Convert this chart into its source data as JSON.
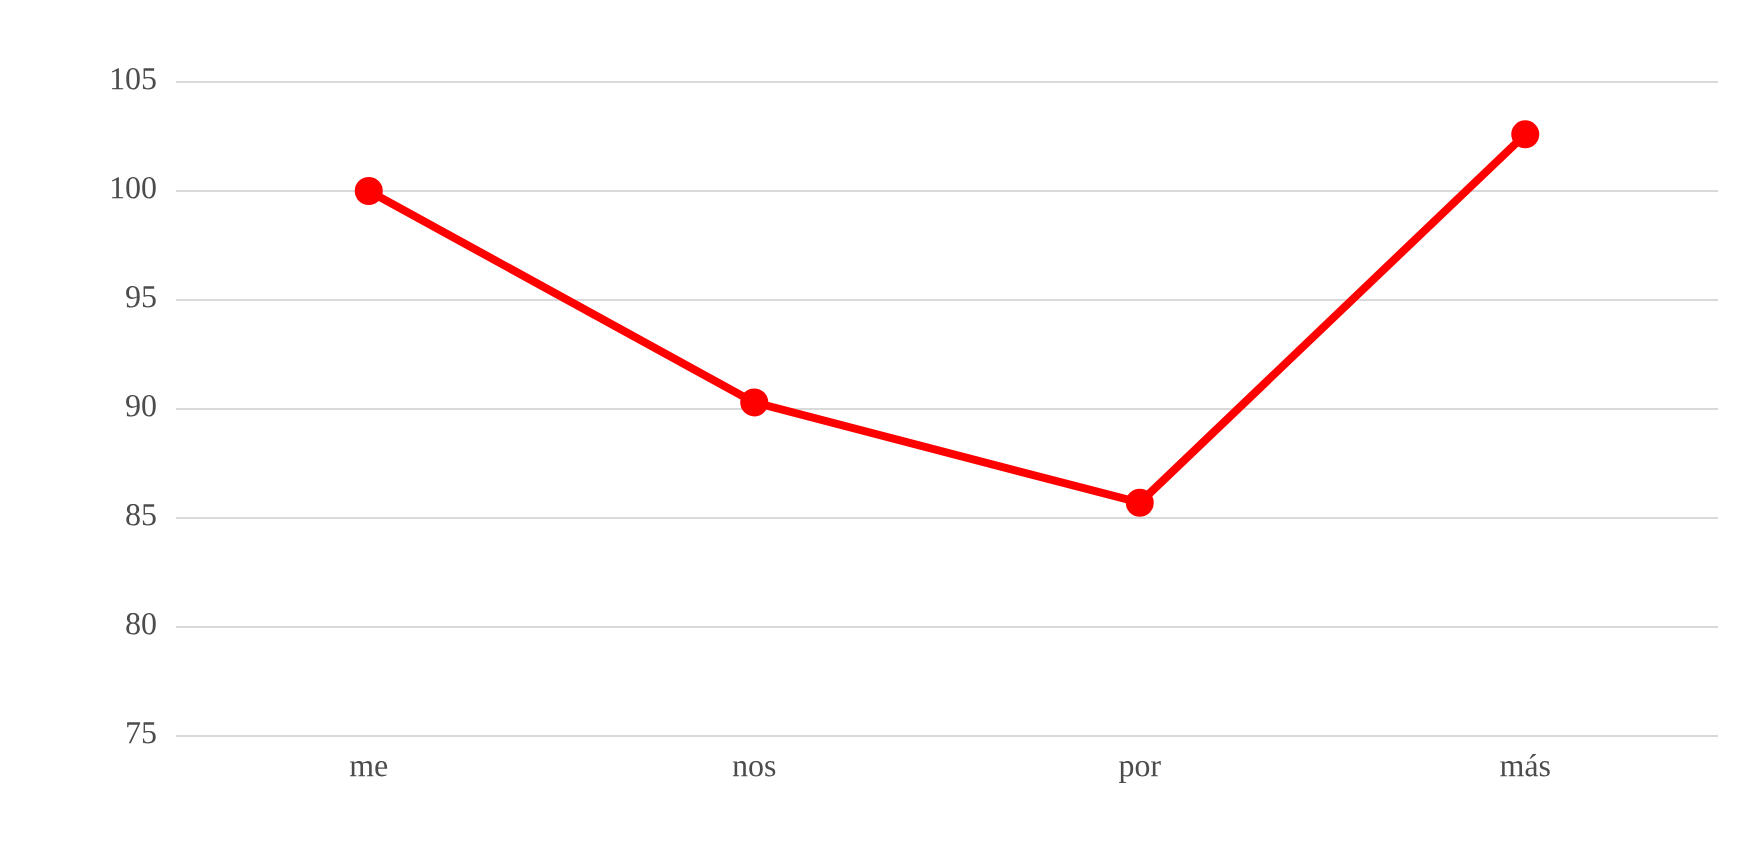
{
  "chart_data": {
    "type": "line",
    "categories": [
      "me",
      "nos",
      "por",
      "más"
    ],
    "series": [
      {
        "color": "#ff0000",
        "values": [
          100,
          90.3,
          85.7,
          102.6
        ]
      }
    ],
    "ylim": [
      75,
      105
    ],
    "yticks": [
      75,
      80,
      85,
      90,
      95,
      100,
      105
    ],
    "grid": "y",
    "marker": "circle",
    "line_style": "solid"
  }
}
